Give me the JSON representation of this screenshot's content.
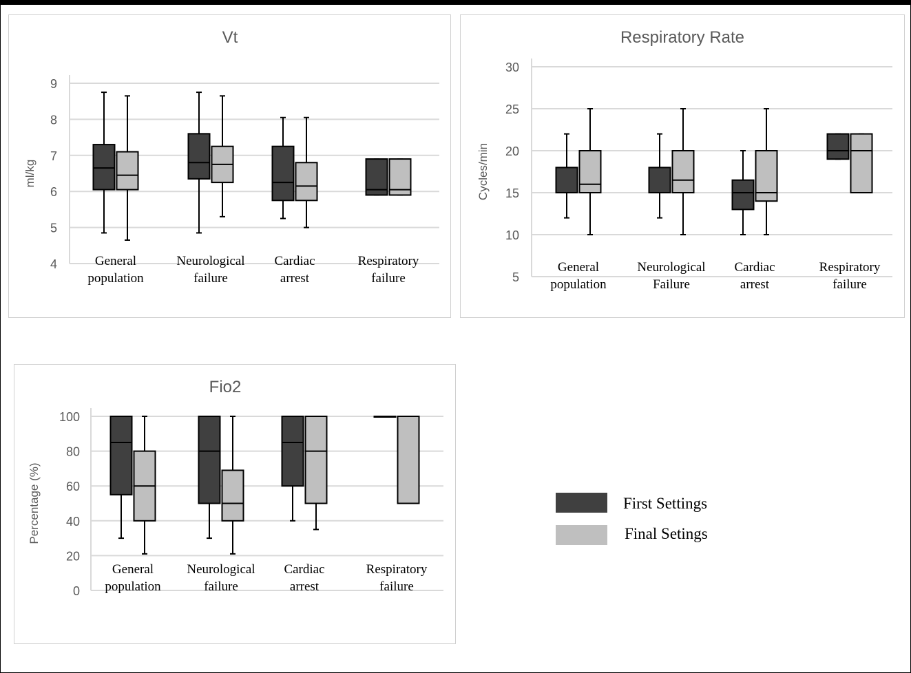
{
  "colors": {
    "first": "#404040",
    "final": "#bfbfbf",
    "stroke": "#000000"
  },
  "legend": [
    {
      "label": "First Settings",
      "color": "#404040"
    },
    {
      "label": "Final Setings",
      "color": "#bfbfbf"
    }
  ],
  "chart_data": [
    {
      "type": "box",
      "title": "Vt",
      "ylabel": "ml/kg",
      "ylim": [
        4,
        9
      ],
      "yticks": [
        4,
        5,
        6,
        7,
        8,
        9
      ],
      "categories": [
        "General\npopulation",
        "Neurological\nfailure",
        "Cardiac\narrest",
        "Respiratory\nfailure"
      ],
      "series": [
        {
          "name": "First Settings",
          "boxes": [
            {
              "min": 4.85,
              "q1": 6.05,
              "median": 6.65,
              "q3": 7.3,
              "max": 8.75
            },
            {
              "min": 4.85,
              "q1": 6.35,
              "median": 6.8,
              "q3": 7.6,
              "max": 8.75
            },
            {
              "min": 5.25,
              "q1": 5.75,
              "median": 6.25,
              "q3": 7.25,
              "max": 8.05
            },
            {
              "min": 5.9,
              "q1": 5.9,
              "median": 6.05,
              "q3": 6.9,
              "max": 6.9
            }
          ]
        },
        {
          "name": "Final Setings",
          "boxes": [
            {
              "min": 4.65,
              "q1": 6.05,
              "median": 6.45,
              "q3": 7.1,
              "max": 8.65
            },
            {
              "min": 5.3,
              "q1": 6.25,
              "median": 6.75,
              "q3": 7.25,
              "max": 8.65
            },
            {
              "min": 5.0,
              "q1": 5.75,
              "median": 6.15,
              "q3": 6.8,
              "max": 8.05
            },
            {
              "min": 5.9,
              "q1": 5.9,
              "median": 6.05,
              "q3": 6.9,
              "max": 6.9
            }
          ]
        }
      ]
    },
    {
      "type": "box",
      "title": "Respiratory Rate",
      "ylabel": "Cycles/min",
      "ylim": [
        5,
        30
      ],
      "yticks": [
        5,
        10,
        15,
        20,
        25,
        30
      ],
      "categories": [
        "General\npopulation",
        "Neurological\nFailure",
        "Cardiac\narrest",
        "Respiratory\nfailure"
      ],
      "series": [
        {
          "name": "First Settings",
          "boxes": [
            {
              "min": 12,
              "q1": 15,
              "median": 15,
              "q3": 18,
              "max": 22
            },
            {
              "min": 12,
              "q1": 15,
              "median": 15,
              "q3": 18,
              "max": 22
            },
            {
              "min": 10,
              "q1": 13,
              "median": 15,
              "q3": 16.5,
              "max": 20
            },
            {
              "min": 19,
              "q1": 19,
              "median": 20,
              "q3": 22,
              "max": 22
            }
          ]
        },
        {
          "name": "Final Setings",
          "boxes": [
            {
              "min": 10,
              "q1": 15,
              "median": 16,
              "q3": 20,
              "max": 25
            },
            {
              "min": 10,
              "q1": 15,
              "median": 16.5,
              "q3": 20,
              "max": 25
            },
            {
              "min": 10,
              "q1": 14,
              "median": 15,
              "q3": 20,
              "max": 25
            },
            {
              "min": 15,
              "q1": 15,
              "median": 20,
              "q3": 22,
              "max": 22
            }
          ]
        }
      ]
    },
    {
      "type": "box",
      "title": "Fio2",
      "ylabel": "Percentage (%)",
      "ylim": [
        0,
        100
      ],
      "yticks": [
        0,
        20,
        40,
        60,
        80,
        100
      ],
      "categories": [
        "General\npopulation",
        "Neurological\nfailure",
        "Cardiac\narrest",
        "Respiratory\nfailure"
      ],
      "series": [
        {
          "name": "First Settings",
          "boxes": [
            {
              "min": 30,
              "q1": 55,
              "median": 85,
              "q3": 100,
              "max": 100
            },
            {
              "min": 30,
              "q1": 50,
              "median": 80,
              "q3": 100,
              "max": 100
            },
            {
              "min": 40,
              "q1": 60,
              "median": 85,
              "q3": 100,
              "max": 100
            },
            {
              "min": 100,
              "q1": 100,
              "median": 100,
              "q3": 100,
              "max": 100
            }
          ]
        },
        {
          "name": "Final Setings",
          "boxes": [
            {
              "min": 21,
              "q1": 40,
              "median": 60,
              "q3": 80,
              "max": 100
            },
            {
              "min": 21,
              "q1": 40,
              "median": 50,
              "q3": 69,
              "max": 100
            },
            {
              "min": 35,
              "q1": 50,
              "median": 80,
              "q3": 100,
              "max": 100
            },
            {
              "min": 50,
              "q1": 50,
              "median": 100,
              "q3": 100,
              "max": 100
            }
          ]
        }
      ]
    }
  ]
}
